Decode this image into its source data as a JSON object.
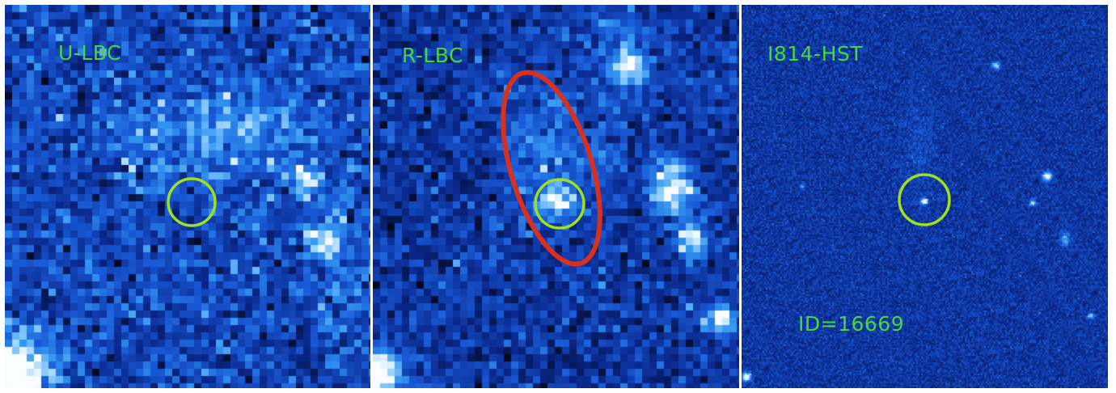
{
  "panels": [
    {
      "band": "U-LBC"
    },
    {
      "band": "R-LBC"
    },
    {
      "band": "I814-HST"
    }
  ],
  "source_id": "ID=16669",
  "colors": {
    "label_text": "#4ad63a",
    "marker_circle": "#9ee01e",
    "ellipse": "#d8301e",
    "colormap_dark": "#050a20",
    "colormap_mid": "#1f5fd8",
    "colormap_bright": "#e8f4ff"
  }
}
